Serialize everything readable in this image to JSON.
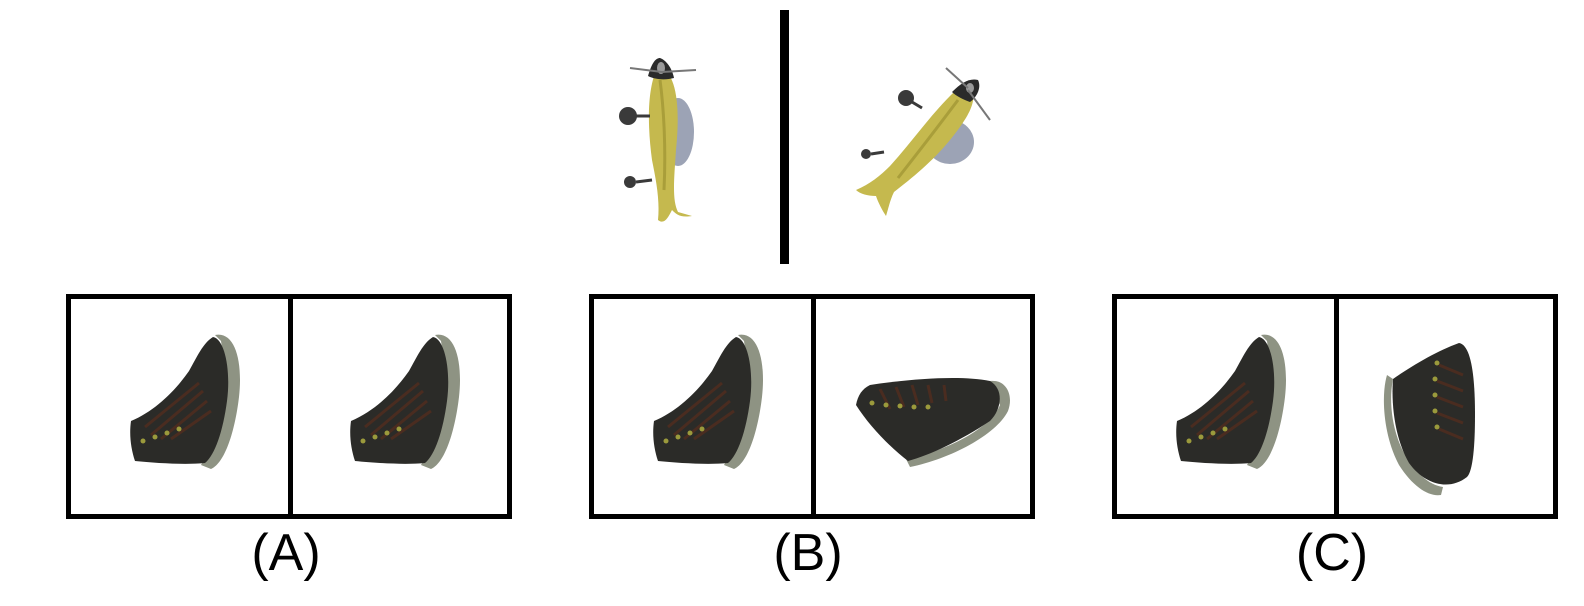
{
  "reference": {
    "left_icon": "yellow-fish-rotated-vertical-icon",
    "right_icon": "yellow-fish-rotated-diagonal-icon"
  },
  "options": [
    {
      "label": "(A)",
      "left_icon": "black-boot-icon",
      "right_icon": "black-boot-same-orientation-icon"
    },
    {
      "label": "(B)",
      "left_icon": "black-boot-icon",
      "right_icon": "black-boot-rotated-icon"
    },
    {
      "label": "(C)",
      "left_icon": "black-boot-icon",
      "right_icon": "black-boot-rotated-icon"
    }
  ],
  "colors": {
    "fish_body": "#c5b94e",
    "fish_head": "#2a2a2a",
    "fish_fin": "#9ca3b5",
    "boot_body": "#2b2b28",
    "boot_sole": "#8e9383",
    "lace": "#4a2c20",
    "eyelet": "#9b9a3c"
  }
}
